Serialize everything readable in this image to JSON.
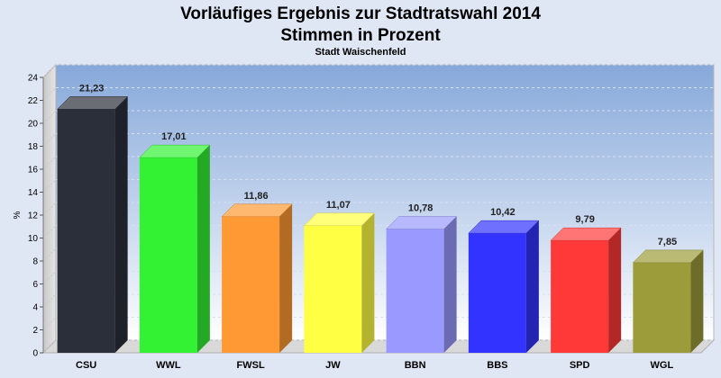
{
  "chart_data": {
    "type": "bar",
    "title_line1": "Vorläufiges Ergebnis zur Stadtratswahl 2014",
    "title_line2": "Stimmen in Prozent",
    "subtitle": "Stadt Waischenfeld",
    "ylabel": "%",
    "xlabel": "",
    "ylim": [
      0,
      24
    ],
    "yticks": [
      0,
      2,
      4,
      6,
      8,
      10,
      12,
      14,
      16,
      18,
      20,
      22,
      24
    ],
    "grid": true,
    "categories": [
      "CSU",
      "WWL",
      "FWSL",
      "JW",
      "BBN",
      "BBS",
      "SPD",
      "WGL"
    ],
    "values": [
      21.23,
      17.01,
      11.86,
      11.07,
      10.78,
      10.42,
      9.79,
      7.85
    ],
    "value_labels": [
      "21,23",
      "17,01",
      "11,86",
      "11,07",
      "10,78",
      "10,42",
      "9,79",
      "7,85"
    ],
    "colors": [
      "#2b2f3a",
      "#33f233",
      "#ff9933",
      "#ffff44",
      "#9999ff",
      "#3333ff",
      "#ff3838",
      "#9c9c3a"
    ],
    "plot_background": "#8fb0de"
  }
}
